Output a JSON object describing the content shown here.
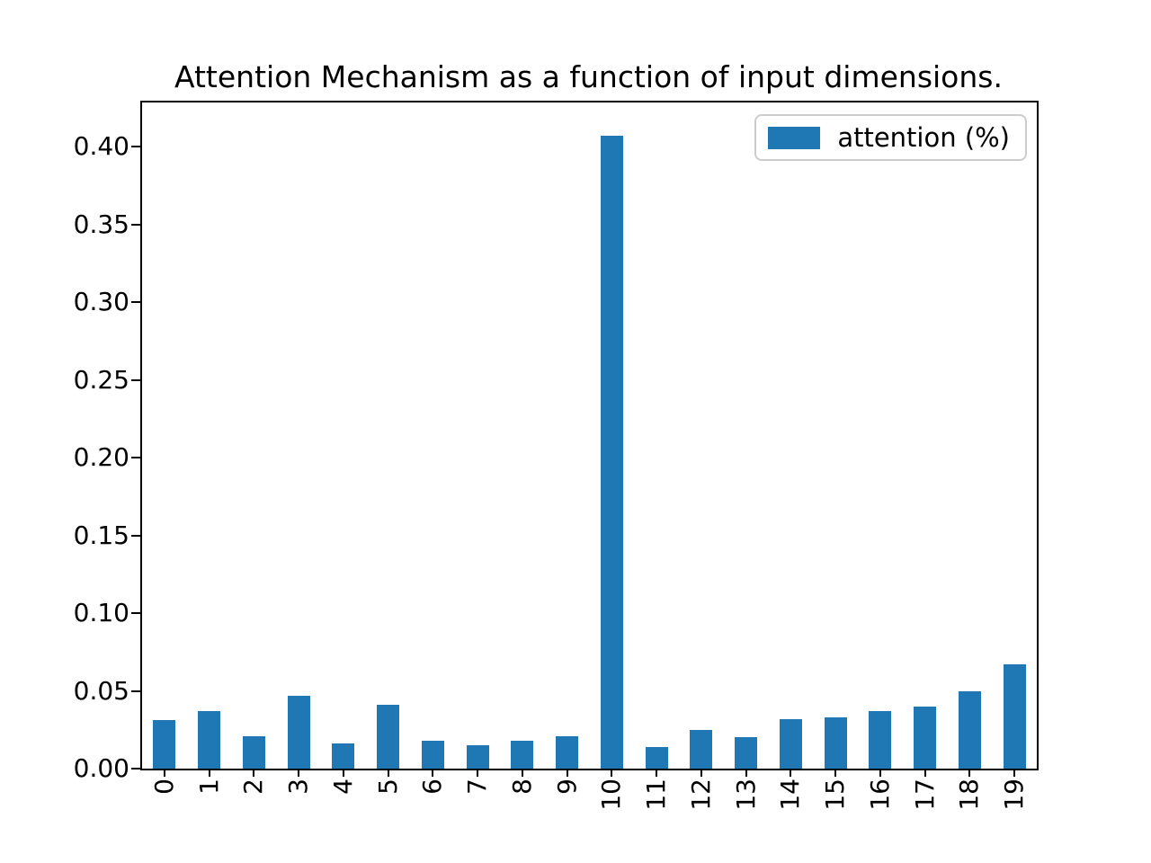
{
  "chart_data": {
    "type": "bar",
    "title": "Attention Mechanism as a function of input dimensions.",
    "legend_label": "attention (%)",
    "legend_position": "upper right",
    "categories": [
      "0",
      "1",
      "2",
      "3",
      "4",
      "5",
      "6",
      "7",
      "8",
      "9",
      "10",
      "11",
      "12",
      "13",
      "14",
      "15",
      "16",
      "17",
      "18",
      "19"
    ],
    "values": [
      0.031,
      0.037,
      0.021,
      0.047,
      0.016,
      0.041,
      0.018,
      0.015,
      0.018,
      0.021,
      0.407,
      0.014,
      0.025,
      0.02,
      0.032,
      0.033,
      0.037,
      0.04,
      0.05,
      0.067
    ],
    "xlabel": "",
    "ylabel": "",
    "yticks": [
      "0.00",
      "0.05",
      "0.10",
      "0.15",
      "0.20",
      "0.25",
      "0.30",
      "0.35",
      "0.40"
    ],
    "ylim": [
      0,
      0.4285
    ],
    "grid": false,
    "bar_color": "#1f77b4",
    "legend_border_color": "#cccccc"
  }
}
